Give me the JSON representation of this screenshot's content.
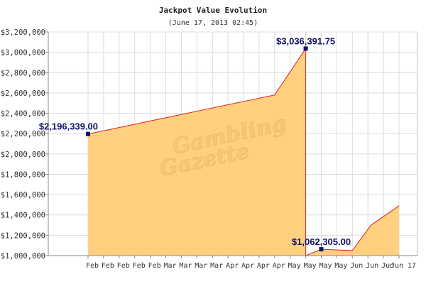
{
  "chart_data": {
    "type": "area",
    "title": "Jackpot Value Evolution",
    "subtitle": "(June 17, 2013 02:45)",
    "xlabel": "",
    "ylabel": "",
    "ylim": [
      1000000,
      3200000
    ],
    "yticks": [
      {
        "value": 1000000,
        "label": "$1,000,000"
      },
      {
        "value": 1200000,
        "label": "$1,200,000"
      },
      {
        "value": 1400000,
        "label": "$1,400,000"
      },
      {
        "value": 1600000,
        "label": "$1,600,000"
      },
      {
        "value": 1800000,
        "label": "$1,800,000"
      },
      {
        "value": 2000000,
        "label": "$2,000,000"
      },
      {
        "value": 2200000,
        "label": "$2,200,000"
      },
      {
        "value": 2400000,
        "label": "$2,400,000"
      },
      {
        "value": 2600000,
        "label": "$2,600,000"
      },
      {
        "value": 2800000,
        "label": "$2,800,000"
      },
      {
        "value": 3000000,
        "label": "$3,000,000"
      },
      {
        "value": 3200000,
        "label": "$3,200,000"
      }
    ],
    "x_tick_labels": [
      "Feb",
      "Feb",
      "Feb",
      "Feb",
      "Feb",
      "Mar",
      "Mar",
      "Mar",
      "Mar",
      "Apr",
      "Apr",
      "Apr",
      "Apr",
      "May",
      "May",
      "May",
      "May",
      "Jun",
      "Jun",
      "Jun",
      "Jun 17"
    ],
    "series": [
      {
        "values": [
          {
            "x": 0,
            "y": 2196339
          },
          {
            "x": 12,
            "y": 2580000
          },
          {
            "x": 14,
            "y": 3036391.75
          },
          {
            "x": 14,
            "y": 1000000
          },
          {
            "x": 15,
            "y": 1062305
          },
          {
            "x": 17,
            "y": 1050000
          },
          {
            "x": 18.2,
            "y": 1300000
          },
          {
            "x": 20,
            "y": 1490000
          }
        ]
      }
    ],
    "annotations": [
      {
        "text": "$2,196,339.00",
        "x": 0,
        "y": 2196339,
        "anchor": "end"
      },
      {
        "text": "$3,036,391.75",
        "x": 14,
        "y": 3036391.75,
        "anchor": "middle"
      },
      {
        "text": "$1,062,305.00",
        "x": 15,
        "y": 1062305,
        "anchor": "middle"
      }
    ],
    "grid": true,
    "colors": {
      "fill": "#ffd080",
      "line": "#e02020",
      "marker": "#10106a",
      "grid": "#dcdcdc"
    },
    "watermark": [
      "Gambling",
      "Gazette"
    ]
  }
}
